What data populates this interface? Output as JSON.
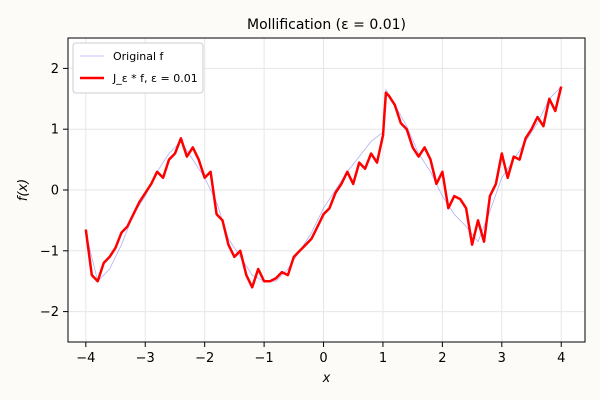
{
  "chart_data": {
    "type": "line",
    "title": "Mollification (ε = 0.01)",
    "xlabel": "x",
    "ylabel": "f(x)",
    "xlim": [
      -4.3,
      4.4
    ],
    "ylim": [
      -2.5,
      2.5
    ],
    "xticks": [
      -4,
      -3,
      -2,
      -1,
      0,
      1,
      2,
      3,
      4
    ],
    "yticks": [
      -2,
      -1,
      0,
      1,
      2
    ],
    "grid": true,
    "legend_position": "upper-left",
    "series": [
      {
        "name": "Original f",
        "color": "#6f6ff2",
        "style": "thin",
        "x": [
          -4.0,
          -3.8,
          -3.6,
          -3.4,
          -3.2,
          -3.0,
          -2.8,
          -2.6,
          -2.4,
          -2.2,
          -2.0,
          -1.8,
          -1.6,
          -1.4,
          -1.2,
          -1.0,
          -0.8,
          -0.6,
          -0.4,
          -0.2,
          0.0,
          0.2,
          0.4,
          0.6,
          0.8,
          1.0,
          1.05,
          1.2,
          1.4,
          1.6,
          1.8,
          2.0,
          2.2,
          2.4,
          2.6,
          2.8,
          3.0,
          3.2,
          3.4,
          3.6,
          3.8,
          4.0
        ],
        "y": [
          -0.7,
          -1.5,
          -1.3,
          -0.9,
          -0.4,
          -0.1,
          0.3,
          0.6,
          0.8,
          0.5,
          0.2,
          -0.2,
          -0.8,
          -1.1,
          -1.4,
          -1.5,
          -1.5,
          -1.3,
          -1.0,
          -0.7,
          -0.3,
          0.0,
          0.3,
          0.55,
          0.8,
          0.95,
          1.65,
          1.4,
          1.05,
          0.6,
          0.3,
          -0.1,
          -0.4,
          -0.6,
          -0.85,
          -0.35,
          0.2,
          0.5,
          0.8,
          1.1,
          1.5,
          1.7
        ]
      },
      {
        "name": "J_ε * f, ε = 0.01",
        "color": "#ff0000",
        "style": "thick",
        "x": [
          -4.0,
          -3.9,
          -3.8,
          -3.7,
          -3.6,
          -3.5,
          -3.4,
          -3.3,
          -3.2,
          -3.1,
          -3.0,
          -2.9,
          -2.8,
          -2.7,
          -2.6,
          -2.5,
          -2.4,
          -2.3,
          -2.2,
          -2.1,
          -2.0,
          -1.9,
          -1.8,
          -1.7,
          -1.6,
          -1.5,
          -1.4,
          -1.3,
          -1.2,
          -1.1,
          -1.0,
          -0.9,
          -0.8,
          -0.7,
          -0.6,
          -0.5,
          -0.4,
          -0.3,
          -0.2,
          -0.1,
          0.0,
          0.1,
          0.2,
          0.3,
          0.4,
          0.5,
          0.6,
          0.7,
          0.8,
          0.9,
          1.0,
          1.05,
          1.1,
          1.2,
          1.3,
          1.4,
          1.5,
          1.6,
          1.7,
          1.8,
          1.9,
          2.0,
          2.1,
          2.2,
          2.3,
          2.4,
          2.5,
          2.6,
          2.7,
          2.8,
          2.9,
          3.0,
          3.1,
          3.2,
          3.3,
          3.4,
          3.5,
          3.6,
          3.7,
          3.8,
          3.9,
          4.0
        ],
        "y": [
          -0.65,
          -1.4,
          -1.5,
          -1.2,
          -1.1,
          -0.95,
          -0.7,
          -0.6,
          -0.4,
          -0.2,
          -0.05,
          0.1,
          0.3,
          0.2,
          0.5,
          0.6,
          0.85,
          0.55,
          0.7,
          0.5,
          0.2,
          0.3,
          -0.4,
          -0.5,
          -0.9,
          -1.1,
          -1.0,
          -1.4,
          -1.6,
          -1.3,
          -1.5,
          -1.5,
          -1.45,
          -1.35,
          -1.4,
          -1.1,
          -1.0,
          -0.9,
          -0.8,
          -0.6,
          -0.4,
          -0.3,
          -0.05,
          0.1,
          0.3,
          0.1,
          0.45,
          0.35,
          0.6,
          0.45,
          0.9,
          1.6,
          1.55,
          1.4,
          1.1,
          1.0,
          0.7,
          0.55,
          0.7,
          0.5,
          0.1,
          0.3,
          -0.3,
          -0.1,
          -0.15,
          -0.3,
          -0.9,
          -0.5,
          -0.85,
          -0.1,
          0.1,
          0.6,
          0.2,
          0.55,
          0.5,
          0.85,
          1.0,
          1.2,
          1.05,
          1.5,
          1.3,
          1.7
        ]
      }
    ]
  }
}
